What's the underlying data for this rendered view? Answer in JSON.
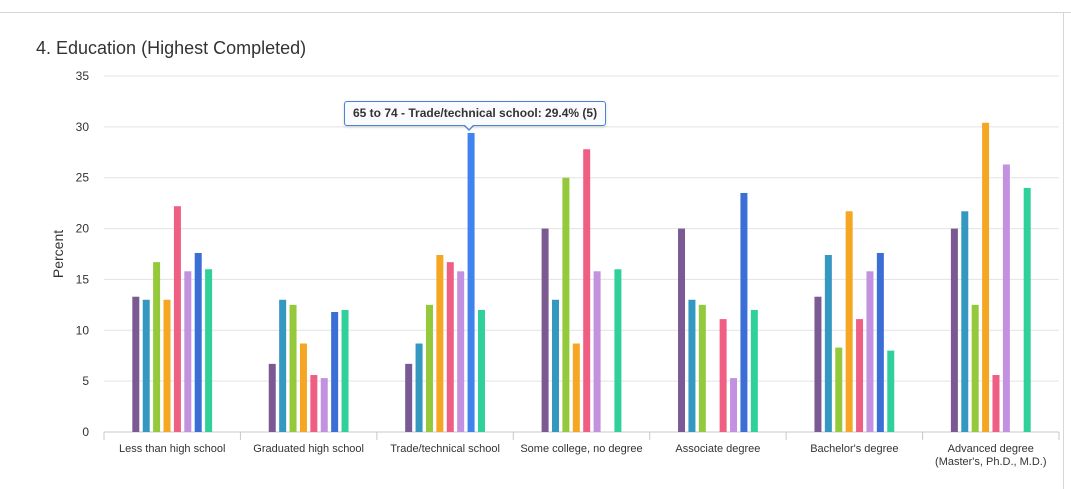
{
  "chart_data": {
    "type": "bar",
    "title": "4. Education (Highest Completed)",
    "ylabel": "Percent",
    "xlabel": "",
    "ylim": [
      0,
      35
    ],
    "yticks": [
      0,
      5,
      10,
      15,
      20,
      25,
      30,
      35
    ],
    "grid": true,
    "categories": [
      "Less than high school",
      "Graduated high school",
      "Trade/technical school",
      "Some college, no degree",
      "Associate degree",
      "Bachelor's degree",
      "Advanced degree (Master's, Ph.D., M.D.)"
    ],
    "category_lines": [
      [
        "Less than high school"
      ],
      [
        "Graduated high school"
      ],
      [
        "Trade/technical school"
      ],
      [
        "Some college, no degree"
      ],
      [
        "Associate degree"
      ],
      [
        "Bachelor's degree"
      ],
      [
        "Advanced degree",
        "(Master's, Ph.D., M.D.)"
      ]
    ],
    "series": [
      {
        "color": "#7b5a94",
        "values": [
          13.3,
          6.7,
          6.7,
          20.0,
          20.0,
          13.3,
          20.0
        ]
      },
      {
        "color": "#3598c0",
        "values": [
          13.0,
          13.0,
          8.7,
          13.0,
          13.0,
          17.4,
          21.7
        ]
      },
      {
        "color": "#94c93b",
        "values": [
          16.7,
          12.5,
          12.5,
          25.0,
          12.5,
          8.3,
          12.5
        ]
      },
      {
        "color": "#f5a623",
        "values": [
          13.0,
          8.7,
          17.4,
          8.7,
          0,
          21.7,
          30.4
        ]
      },
      {
        "color": "#ee5f83",
        "values": [
          22.2,
          5.6,
          16.7,
          27.8,
          11.1,
          11.1,
          5.6
        ]
      },
      {
        "color": "#c291e0",
        "values": [
          15.8,
          5.3,
          15.8,
          15.8,
          5.3,
          15.8,
          26.3
        ]
      },
      {
        "color": "#3b6fd6",
        "values": [
          17.6,
          11.8,
          29.4,
          0,
          23.5,
          17.6,
          0
        ]
      },
      {
        "color": "#2fd09a",
        "values": [
          16.0,
          12.0,
          12.0,
          16.0,
          12.0,
          8.0,
          24.0
        ]
      }
    ],
    "tooltip": "65 to 74 - Trade/technical school: 29.4% (5)",
    "highlight": {
      "series_index": 6,
      "category_index": 2,
      "color": "#3f84ee"
    }
  }
}
